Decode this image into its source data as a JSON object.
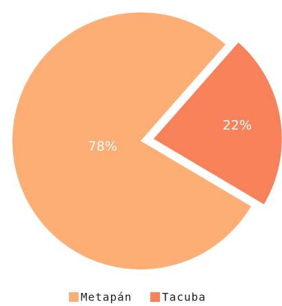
{
  "chart_data": {
    "type": "pie",
    "categories": [
      "Metapán",
      "Tacuba"
    ],
    "values": [
      78,
      22
    ],
    "value_labels": [
      "78%",
      "22%"
    ],
    "colors": [
      "#fdae74",
      "#f7825a"
    ],
    "exploded": [
      false,
      true
    ],
    "legend": "bottom"
  }
}
